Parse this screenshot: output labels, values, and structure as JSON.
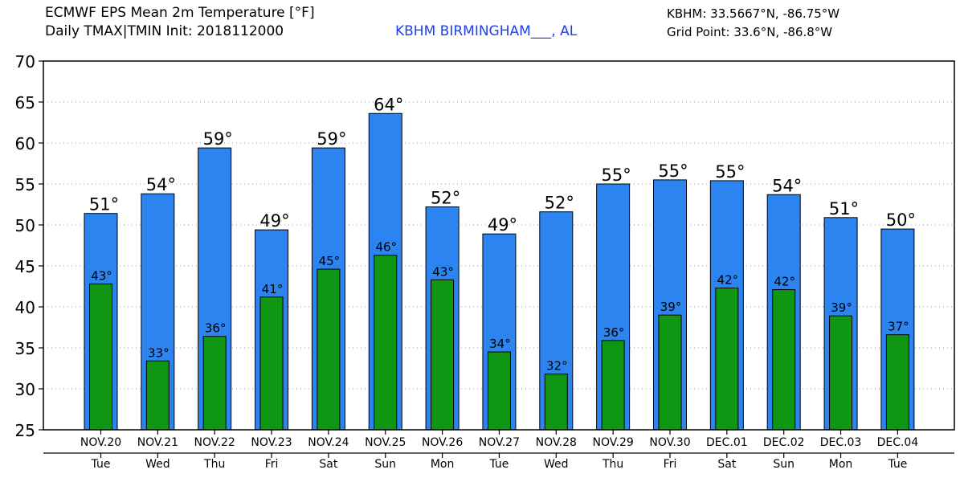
{
  "header": {
    "title": "ECMWF EPS Mean 2m Temperature [°F]",
    "subtitle": "Daily TMAX|TMIN Init: 2018112000",
    "station": "KBHM BIRMINGHAM___, AL",
    "station_coords": "KBHM: 33.5667°N, -86.75°W",
    "grid_point": "Grid Point: 33.6°N, -86.8°W"
  },
  "colors": {
    "tmax": "#2b84f0",
    "tmin": "#0f9612",
    "station_text": "#1f3fe8",
    "grid": "#9a9a9a"
  },
  "chart_data": {
    "type": "bar",
    "title": "ECMWF EPS Mean 2m Temperature [°F]",
    "ylabel": "°F",
    "ylim": [
      25,
      70
    ],
    "yticks": [
      25,
      30,
      35,
      40,
      45,
      50,
      55,
      60,
      65,
      70
    ],
    "grid": "horizontal dotted",
    "categories": [
      "NOV.20",
      "NOV.21",
      "NOV.22",
      "NOV.23",
      "NOV.24",
      "NOV.25",
      "NOV.26",
      "NOV.27",
      "NOV.28",
      "NOV.29",
      "NOV.30",
      "DEC.01",
      "DEC.02",
      "DEC.03",
      "DEC.04"
    ],
    "weekdays": [
      "Tue",
      "Wed",
      "Thu",
      "Fri",
      "Sat",
      "Sun",
      "Mon",
      "Tue",
      "Wed",
      "Thu",
      "Fri",
      "Sat",
      "Sun",
      "Mon",
      "Tue"
    ],
    "series": [
      {
        "name": "TMAX",
        "values": [
          51.4,
          53.8,
          59.4,
          49.4,
          59.4,
          63.6,
          52.2,
          48.9,
          51.6,
          55.0,
          55.5,
          55.4,
          53.7,
          50.9,
          49.5
        ],
        "labels": [
          "51°",
          "54°",
          "59°",
          "49°",
          "59°",
          "64°",
          "52°",
          "49°",
          "52°",
          "55°",
          "55°",
          "55°",
          "54°",
          "51°",
          "50°"
        ]
      },
      {
        "name": "TMIN",
        "values": [
          42.8,
          33.4,
          36.4,
          41.2,
          44.6,
          46.3,
          43.3,
          34.5,
          31.8,
          35.9,
          39.0,
          42.3,
          42.1,
          38.9,
          36.6
        ],
        "labels": [
          "43°",
          "33°",
          "36°",
          "41°",
          "45°",
          "46°",
          "43°",
          "34°",
          "32°",
          "36°",
          "39°",
          "42°",
          "42°",
          "39°",
          "37°"
        ]
      }
    ]
  }
}
